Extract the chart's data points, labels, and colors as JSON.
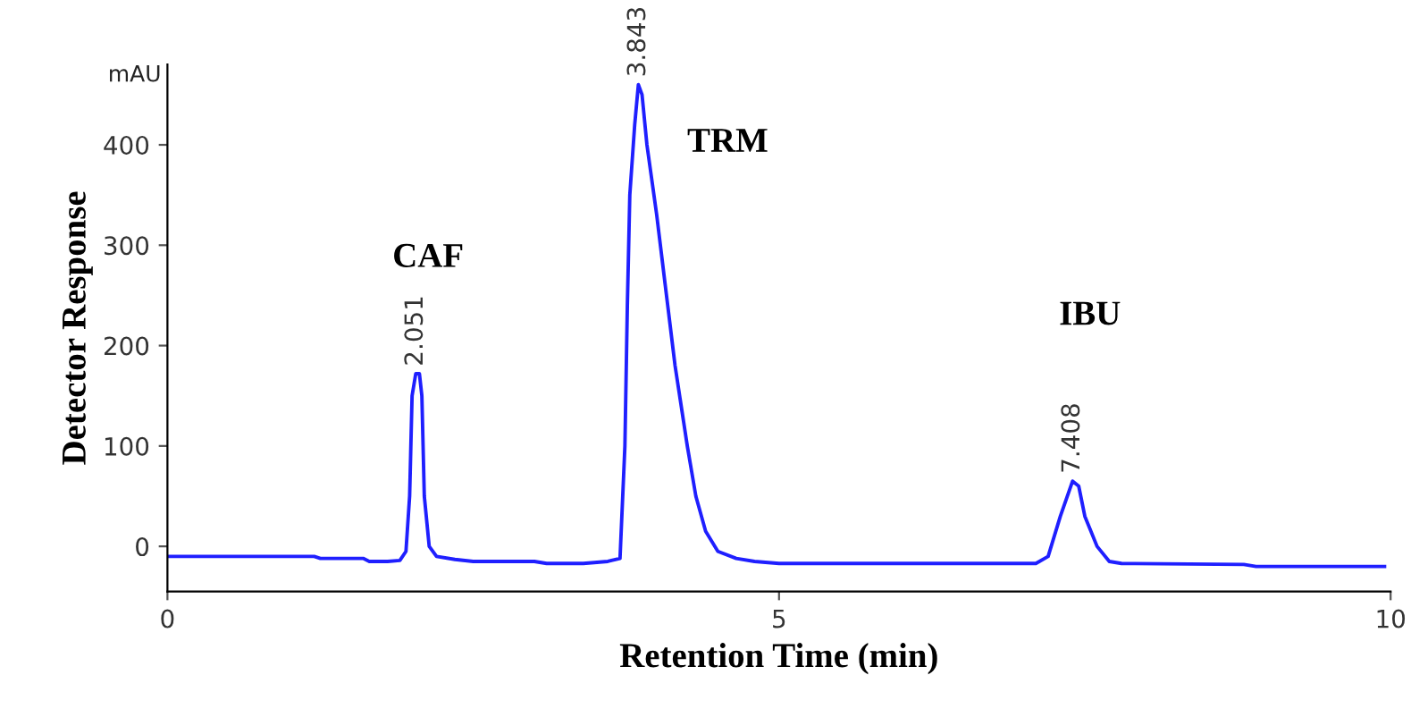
{
  "chart_data": {
    "type": "line",
    "xlabel": "Retention Time (min)",
    "ylabel": "Detector Response",
    "xlim": [
      0,
      10
    ],
    "xticks": [
      0,
      5,
      10
    ],
    "ylim": [
      -45,
      480
    ],
    "yticks": [
      0,
      100,
      200,
      300,
      400
    ],
    "grid": false,
    "legend": false,
    "marker": "none",
    "line_style": "solid",
    "series": [
      {
        "color": "#1f1fff",
        "x": [
          0,
          1.2,
          1.25,
          1.6,
          1.65,
          1.8,
          1.9,
          1.95,
          1.98,
          2.0,
          2.03,
          2.06,
          2.08,
          2.1,
          2.14,
          2.2,
          2.35,
          2.5,
          3.0,
          3.1,
          3.4,
          3.6,
          3.7,
          3.74,
          3.76,
          3.78,
          3.82,
          3.85,
          3.88,
          3.92,
          4.0,
          4.08,
          4.15,
          4.25,
          4.32,
          4.4,
          4.5,
          4.65,
          4.8,
          5.0,
          7.1,
          7.2,
          7.3,
          7.4,
          7.45,
          7.5,
          7.6,
          7.7,
          7.8,
          8.8,
          8.9,
          9.95
        ],
        "values": [
          -10,
          -10,
          -12,
          -12,
          -15,
          -15,
          -14,
          -5,
          50,
          150,
          172,
          172,
          150,
          50,
          0,
          -10,
          -13,
          -15,
          -15,
          -17,
          -17,
          -15,
          -12,
          100,
          240,
          350,
          420,
          460,
          450,
          400,
          330,
          250,
          180,
          100,
          50,
          15,
          -5,
          -12,
          -15,
          -17,
          -17,
          -10,
          30,
          65,
          60,
          30,
          0,
          -15,
          -17,
          -18,
          -20,
          -20
        ]
      }
    ],
    "annotations": [
      {
        "text": "2.051",
        "x": 2.03,
        "y": 172
      },
      {
        "text": "3.843",
        "x": 3.85,
        "y": 460
      },
      {
        "text": "7.408",
        "x": 7.4,
        "y": 65
      },
      "CAF",
      "TRM",
      "IBU",
      "mAU"
    ]
  }
}
